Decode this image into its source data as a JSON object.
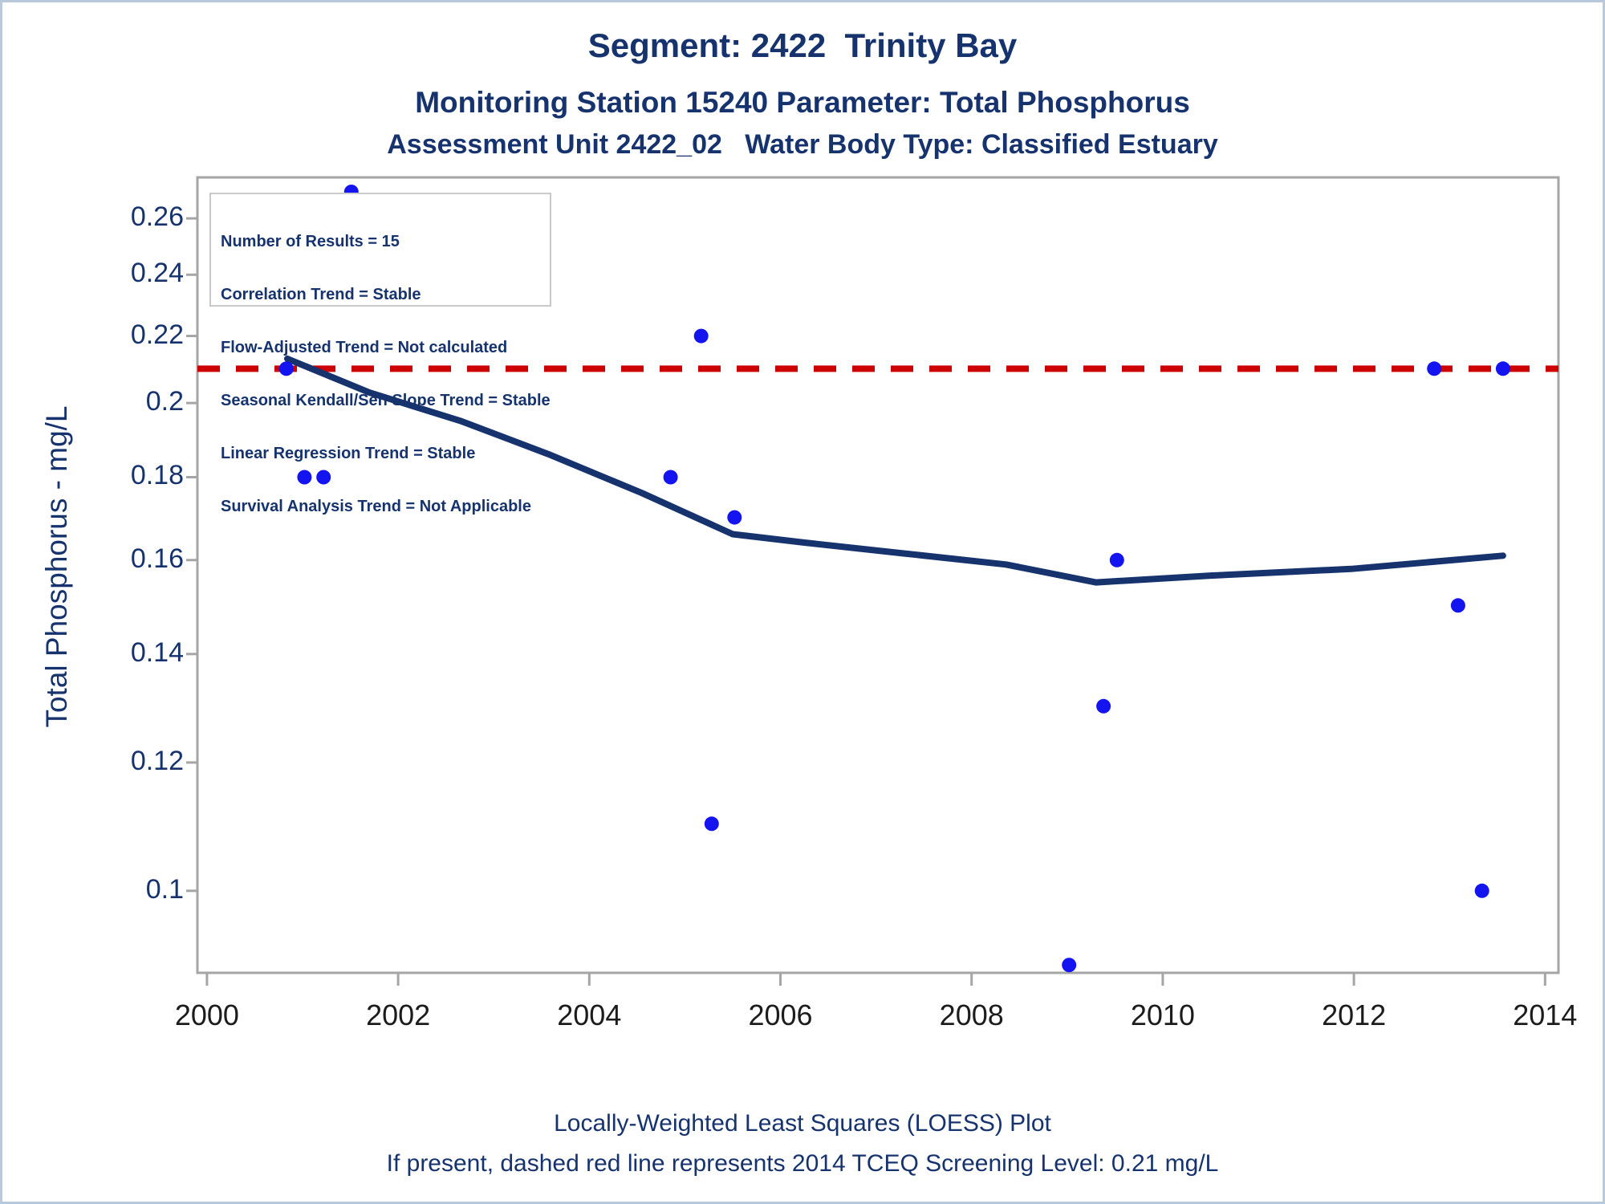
{
  "header": {
    "title1": "Segment: 2422  Trinity Bay",
    "title2": "Monitoring Station 15240 Parameter: Total Phosphorus",
    "title3": "Assessment Unit 2422_02   Water Body Type: Classified Estuary"
  },
  "stats_box": {
    "lines": [
      "Number of Results = 15",
      "Correlation Trend = Stable",
      "Flow-Adjusted Trend = Not calculated",
      "Seasonal Kendall/Sen Slope Trend = Stable",
      "Linear Regression Trend = Stable",
      "Survival Analysis Trend = Not Applicable"
    ]
  },
  "footer": {
    "line1": "Locally-Weighted Least Squares (LOESS) Plot",
    "line2": "If present, dashed red line represents 2014 TCEQ Screening Level: 0.21 mg/L"
  },
  "chart_data": {
    "type": "scatter",
    "title": "Segment: 2422 Trinity Bay — Monitoring Station 15240 — Total Phosphorus",
    "xlabel": "",
    "ylabel": "Total Phosphorus - mg/L",
    "y_scale": "log",
    "xlim": [
      1999.9,
      2014.14
    ],
    "ylim": [
      0.089,
      0.2756
    ],
    "x_ticks": [
      2000,
      2002,
      2004,
      2006,
      2008,
      2010,
      2012,
      2014
    ],
    "y_ticks": [
      0.26,
      0.24,
      0.22,
      0.2,
      0.18,
      0.16,
      0.14,
      0.12,
      0.1
    ],
    "grid": false,
    "legend_position": "stats box top-left",
    "screening_line": {
      "value": 0.21,
      "label": "2014 TCEQ Screening Level: 0.21 mg/L",
      "color": "#cc0000",
      "style": "dashed"
    },
    "series": [
      {
        "name": "Total Phosphorus results",
        "type": "scatter",
        "color": "#1414f0",
        "points": [
          [
            2000.83,
            0.21
          ],
          [
            2001.02,
            0.18
          ],
          [
            2001.22,
            0.18
          ],
          [
            2001.51,
            0.27
          ],
          [
            2004.85,
            0.18
          ],
          [
            2005.17,
            0.22
          ],
          [
            2005.28,
            0.11
          ],
          [
            2005.52,
            0.17
          ],
          [
            2009.02,
            0.09
          ],
          [
            2009.38,
            0.13
          ],
          [
            2009.52,
            0.16
          ],
          [
            2012.84,
            0.21
          ],
          [
            2013.09,
            0.15
          ],
          [
            2013.34,
            0.1
          ],
          [
            2013.56,
            0.21
          ]
        ]
      },
      {
        "name": "LOESS trend",
        "type": "line",
        "color": "#16336e",
        "points": [
          [
            2000.84,
            0.213
          ],
          [
            2001.7,
            0.203
          ],
          [
            2002.65,
            0.195
          ],
          [
            2003.57,
            0.186
          ],
          [
            2004.55,
            0.176
          ],
          [
            2005.5,
            0.166
          ],
          [
            2006.26,
            0.164
          ],
          [
            2007.3,
            0.1615
          ],
          [
            2008.36,
            0.159
          ],
          [
            2009.3,
            0.155
          ],
          [
            2010.5,
            0.1565
          ],
          [
            2011.97,
            0.158
          ],
          [
            2013.56,
            0.161
          ]
        ]
      }
    ],
    "colors": {
      "frame": "#a5a5a5",
      "point": "#1414f0",
      "loess": "#16336e",
      "screening": "#cc0000",
      "y_tick_label": "#16336e",
      "x_tick_label": "#1c1c1c"
    }
  }
}
